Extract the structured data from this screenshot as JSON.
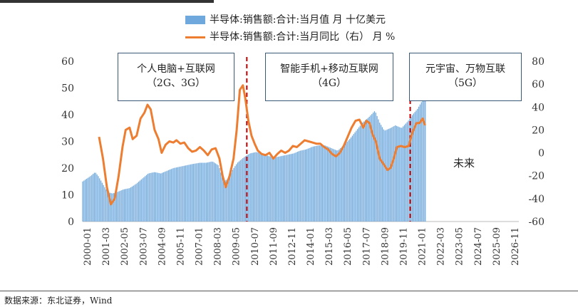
{
  "chart_data": {
    "type": "bar+line",
    "title": "",
    "legend": {
      "bar_label": "半导体:销售额:合计:当月值 月 十亿美元",
      "line_label": "半导体:销售额:合计:当月同比（右） 月 %"
    },
    "y_left": {
      "ylim": [
        0,
        60
      ],
      "ticks": [
        "0",
        "10",
        "20",
        "30",
        "40",
        "50",
        "60"
      ]
    },
    "y_right": {
      "ylim": [
        -60,
        80
      ],
      "ticks": [
        "-60",
        "-40",
        "-20",
        "0",
        "20",
        "40",
        "60",
        "80"
      ]
    },
    "x_ticks": [
      "2000-01",
      "2001-03",
      "2002-05",
      "2003-07",
      "2004-09",
      "2005-11",
      "2007-01",
      "2008-03",
      "2009-05",
      "2010-07",
      "2011-09",
      "2012-11",
      "2014-01",
      "2015-03",
      "2016-05",
      "2017-07",
      "2018-09",
      "2019-11",
      "2021-01",
      "2022-03",
      "2023-05",
      "2024-07",
      "2025-09",
      "2026-11"
    ],
    "x_start": 2000.0,
    "x_end": 2027.9,
    "bar_series": {
      "name": "半导体:销售额:合计:当月值",
      "unit": "十亿美元",
      "color": "#6fa8dc",
      "points": [
        [
          2000.0,
          15
        ],
        [
          2000.5,
          17
        ],
        [
          2000.8,
          18.5
        ],
        [
          2001.0,
          17
        ],
        [
          2001.3,
          14
        ],
        [
          2001.6,
          11
        ],
        [
          2001.9,
          10.5
        ],
        [
          2002.2,
          11
        ],
        [
          2002.6,
          12
        ],
        [
          2003.0,
          12.5
        ],
        [
          2003.4,
          14
        ],
        [
          2003.8,
          16
        ],
        [
          2004.2,
          18
        ],
        [
          2004.6,
          18.5
        ],
        [
          2005.0,
          18
        ],
        [
          2005.4,
          19
        ],
        [
          2005.8,
          20
        ],
        [
          2006.2,
          20.5
        ],
        [
          2006.6,
          21
        ],
        [
          2007.0,
          21.5
        ],
        [
          2007.5,
          22
        ],
        [
          2007.9,
          22
        ],
        [
          2008.3,
          22.5
        ],
        [
          2008.7,
          21
        ],
        [
          2009.0,
          15
        ],
        [
          2009.3,
          16
        ],
        [
          2009.6,
          19.5
        ],
        [
          2009.9,
          22
        ],
        [
          2010.3,
          24
        ],
        [
          2010.7,
          25.5
        ],
        [
          2011.1,
          26
        ],
        [
          2011.5,
          25.5
        ],
        [
          2011.9,
          24.5
        ],
        [
          2012.3,
          24
        ],
        [
          2012.7,
          24.5
        ],
        [
          2013.1,
          25
        ],
        [
          2013.5,
          25.5
        ],
        [
          2013.9,
          26.5
        ],
        [
          2014.3,
          27
        ],
        [
          2014.7,
          28
        ],
        [
          2015.1,
          28.5
        ],
        [
          2015.5,
          28.5
        ],
        [
          2015.9,
          27.5
        ],
        [
          2016.3,
          26.5
        ],
        [
          2016.7,
          28.5
        ],
        [
          2017.1,
          31
        ],
        [
          2017.5,
          34
        ],
        [
          2017.9,
          37
        ],
        [
          2018.3,
          39
        ],
        [
          2018.7,
          41.5
        ],
        [
          2019.0,
          37
        ],
        [
          2019.3,
          34
        ],
        [
          2019.7,
          35
        ],
        [
          2020.0,
          36
        ],
        [
          2020.4,
          35
        ],
        [
          2020.8,
          37.5
        ],
        [
          2021.1,
          40
        ],
        [
          2021.4,
          42
        ],
        [
          2021.7,
          45
        ],
        [
          2021.95,
          48
        ]
      ]
    },
    "line_series": {
      "name": "半导体:销售额:合计:当月同比",
      "unit": "%",
      "color": "#ed7d31",
      "points": [
        [
          2001.05,
          14
        ],
        [
          2001.3,
          -5
        ],
        [
          2001.55,
          -30
        ],
        [
          2001.8,
          -45
        ],
        [
          2002.05,
          -40
        ],
        [
          2002.3,
          -20
        ],
        [
          2002.55,
          5
        ],
        [
          2002.75,
          20
        ],
        [
          2003.0,
          22
        ],
        [
          2003.2,
          12
        ],
        [
          2003.45,
          15
        ],
        [
          2003.7,
          30
        ],
        [
          2003.95,
          35
        ],
        [
          2004.15,
          42
        ],
        [
          2004.35,
          38
        ],
        [
          2004.6,
          20
        ],
        [
          2004.85,
          12
        ],
        [
          2005.05,
          0
        ],
        [
          2005.3,
          7
        ],
        [
          2005.55,
          10
        ],
        [
          2005.8,
          9
        ],
        [
          2006.0,
          11
        ],
        [
          2006.25,
          8
        ],
        [
          2006.5,
          9
        ],
        [
          2006.75,
          4
        ],
        [
          2007.0,
          1
        ],
        [
          2007.25,
          2
        ],
        [
          2007.5,
          5
        ],
        [
          2007.75,
          2
        ],
        [
          2008.0,
          -2
        ],
        [
          2008.25,
          3
        ],
        [
          2008.5,
          4
        ],
        [
          2008.75,
          -5
        ],
        [
          2008.95,
          -20
        ],
        [
          2009.15,
          -30
        ],
        [
          2009.4,
          -20
        ],
        [
          2009.65,
          -5
        ],
        [
          2009.85,
          20
        ],
        [
          2010.05,
          55
        ],
        [
          2010.25,
          59
        ],
        [
          2010.4,
          48
        ],
        [
          2010.6,
          28
        ],
        [
          2010.8,
          15
        ],
        [
          2011.0,
          8
        ],
        [
          2011.2,
          2
        ],
        [
          2011.45,
          -1
        ],
        [
          2011.7,
          -2
        ],
        [
          2011.95,
          0
        ],
        [
          2012.2,
          -5
        ],
        [
          2012.45,
          -1
        ],
        [
          2012.7,
          2
        ],
        [
          2012.95,
          0
        ],
        [
          2013.2,
          2
        ],
        [
          2013.45,
          6
        ],
        [
          2013.7,
          5
        ],
        [
          2013.95,
          8
        ],
        [
          2014.2,
          11
        ],
        [
          2014.45,
          10
        ],
        [
          2014.7,
          9
        ],
        [
          2014.95,
          8
        ],
        [
          2015.2,
          8
        ],
        [
          2015.45,
          5
        ],
        [
          2015.7,
          3
        ],
        [
          2015.95,
          -1
        ],
        [
          2016.2,
          -3
        ],
        [
          2016.45,
          0
        ],
        [
          2016.7,
          6
        ],
        [
          2016.95,
          14
        ],
        [
          2017.2,
          22
        ],
        [
          2017.45,
          28
        ],
        [
          2017.7,
          29
        ],
        [
          2017.95,
          22
        ],
        [
          2018.15,
          28
        ],
        [
          2018.35,
          26
        ],
        [
          2018.55,
          16
        ],
        [
          2018.75,
          10
        ],
        [
          2019.0,
          -5
        ],
        [
          2019.25,
          -10
        ],
        [
          2019.5,
          -15
        ],
        [
          2019.7,
          -13
        ],
        [
          2019.9,
          -5
        ],
        [
          2020.1,
          5
        ],
        [
          2020.35,
          6
        ],
        [
          2020.6,
          5
        ],
        [
          2020.85,
          6
        ],
        [
          2021.1,
          18
        ],
        [
          2021.35,
          26
        ],
        [
          2021.55,
          26
        ],
        [
          2021.75,
          30
        ],
        [
          2021.9,
          24
        ]
      ]
    },
    "markers": {
      "color": "#c00000",
      "x": [
        2010.5,
        2020.95
      ]
    },
    "annotations": [
      {
        "line1": "个人电脑+互联网",
        "line2": "（2G、3G）"
      },
      {
        "line1": "智能手机+移动互联网",
        "line2": "（4G）"
      },
      {
        "line1": "元宇宙、万物互联",
        "line2": "（5G）"
      }
    ],
    "future_label": "未来",
    "source": "数据来源：东北证券，Wind"
  }
}
